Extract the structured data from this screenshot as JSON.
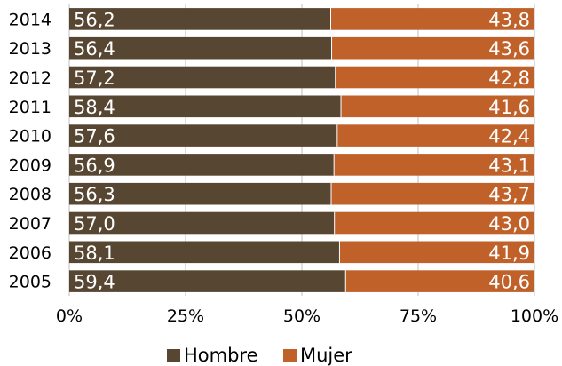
{
  "chart_data": {
    "type": "bar",
    "orientation": "horizontal",
    "stacked": "percent",
    "categories": [
      "2014",
      "2013",
      "2012",
      "2011",
      "2010",
      "2009",
      "2008",
      "2007",
      "2006",
      "2005"
    ],
    "series": [
      {
        "name": "Hombre",
        "values": [
          56.2,
          56.4,
          57.2,
          58.4,
          57.6,
          56.9,
          56.3,
          57.0,
          58.1,
          59.4
        ],
        "labels": [
          "56,2",
          "56,4",
          "57,2",
          "58,4",
          "57,6",
          "56,9",
          "56,3",
          "57,0",
          "58,1",
          "59,4"
        ],
        "color": "#574631"
      },
      {
        "name": "Mujer",
        "values": [
          43.8,
          43.6,
          42.8,
          41.6,
          42.4,
          43.1,
          43.7,
          43.0,
          41.9,
          40.6
        ],
        "labels": [
          "43,8",
          "43,6",
          "42,8",
          "41,6",
          "42,4",
          "43,1",
          "43,7",
          "43,0",
          "41,9",
          "40,6"
        ],
        "color": "#C0612A"
      }
    ],
    "xlim": [
      0,
      100
    ],
    "xticks": [
      0,
      25,
      50,
      75,
      100
    ],
    "xtick_labels": [
      "0%",
      "25%",
      "50%",
      "75%",
      "100%"
    ],
    "grid": true,
    "legend_position": "bottom"
  }
}
